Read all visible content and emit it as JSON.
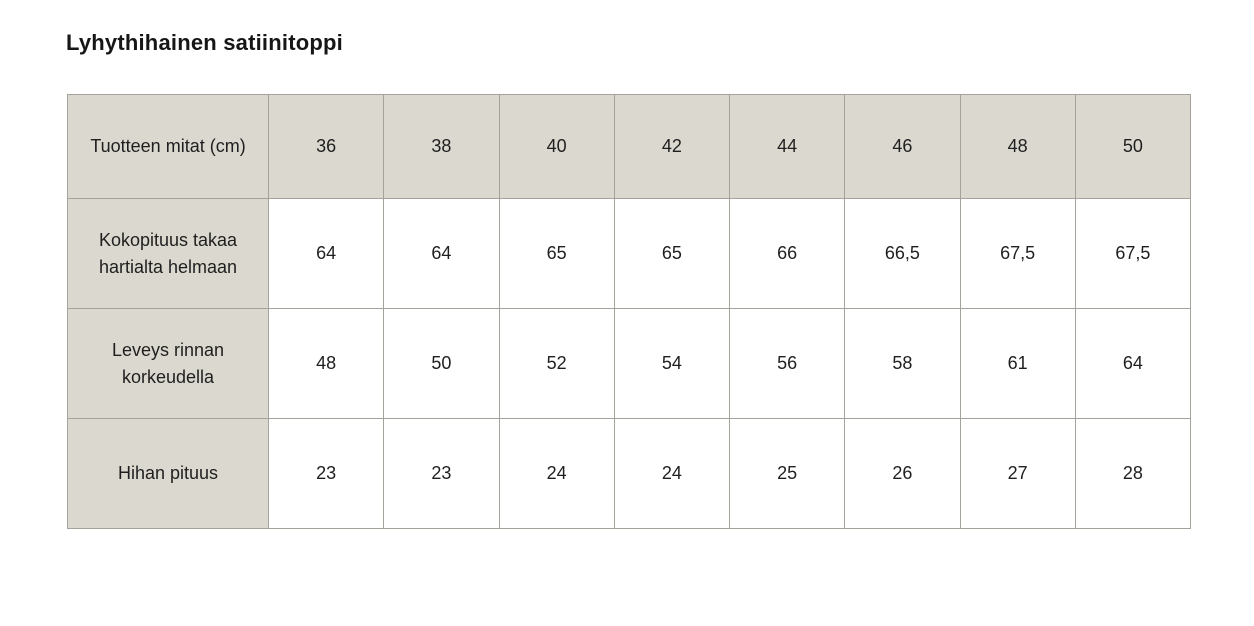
{
  "page": {
    "background_color": "#ffffff"
  },
  "title": "Lyhythihainen satiinitoppi",
  "chart_data": {
    "type": "table",
    "title": "Lyhythihainen satiinitoppi",
    "header_row": [
      "Tuotteen mitat (cm)",
      "36",
      "38",
      "40",
      "42",
      "44",
      "46",
      "48",
      "50"
    ],
    "rows": [
      [
        "Kokopituus takaa hartialta helmaan",
        "64",
        "64",
        "65",
        "65",
        "66",
        "66,5",
        "67,5",
        "67,5"
      ],
      [
        "Leveys rinnan korkeudella",
        "48",
        "50",
        "52",
        "54",
        "56",
        "58",
        "61",
        "64"
      ],
      [
        "Hihan pituus",
        "23",
        "23",
        "24",
        "24",
        "25",
        "26",
        "27",
        "28"
      ]
    ],
    "layout": {
      "grid": true,
      "label_column_header": "Tuotteen mitat (cm)",
      "sizes": [
        "36",
        "38",
        "40",
        "42",
        "44",
        "46",
        "48",
        "50"
      ]
    },
    "colors": {
      "header_and_label_bg": "#dbd8cf",
      "data_cell_bg": "#ffffff",
      "border": "#a5a29b",
      "text": "#1f1f1f",
      "title_text": "#161616"
    }
  }
}
